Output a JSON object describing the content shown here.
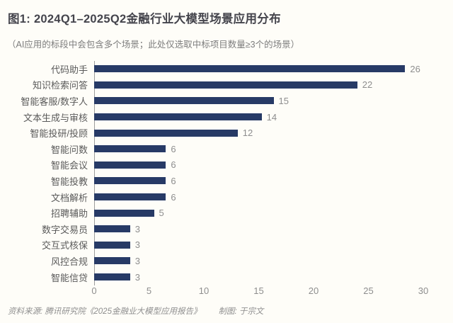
{
  "page": {
    "background": "#fefdf8"
  },
  "header": {
    "title": "图1: 2024Q1–2025Q2金融行业大模型场景应用分布",
    "subtitle": "（AI应用的标段中会包含多个场景；此处仅选取中标项目数量≥3个的场景）"
  },
  "chart_data": {
    "type": "bar",
    "orientation": "horizontal",
    "title": "图1: 2024Q1–2025Q2金融行业大模型场景应用分布",
    "categories": [
      "代码助手",
      "知识检索问答",
      "智能客服/数字人",
      "文本生成与审核",
      "智能投研/投顾",
      "智能问数",
      "智能会议",
      "智能投教",
      "文档解析",
      "招聘辅助",
      "数字交易员",
      "交互式核保",
      "风控合规",
      "智能信贷"
    ],
    "values": [
      26,
      22,
      15,
      14,
      12,
      6,
      6,
      6,
      6,
      5,
      3,
      3,
      3,
      3
    ],
    "value_labels_shown": true,
    "xticks": [
      0,
      5,
      10,
      15,
      20,
      25,
      30
    ],
    "xlim": [
      0,
      30
    ],
    "grid": false,
    "legend": "none",
    "bar_color": "#273a66",
    "value_label_color": "#8e8e8e",
    "tick_label_color": "#8e8e8e",
    "category_label_color": "#5a5a5a"
  },
  "footer": {
    "source": "资料来源: 腾讯研究院《2025金融业大模型应用报告》",
    "credit": "制图: 于宗文"
  }
}
